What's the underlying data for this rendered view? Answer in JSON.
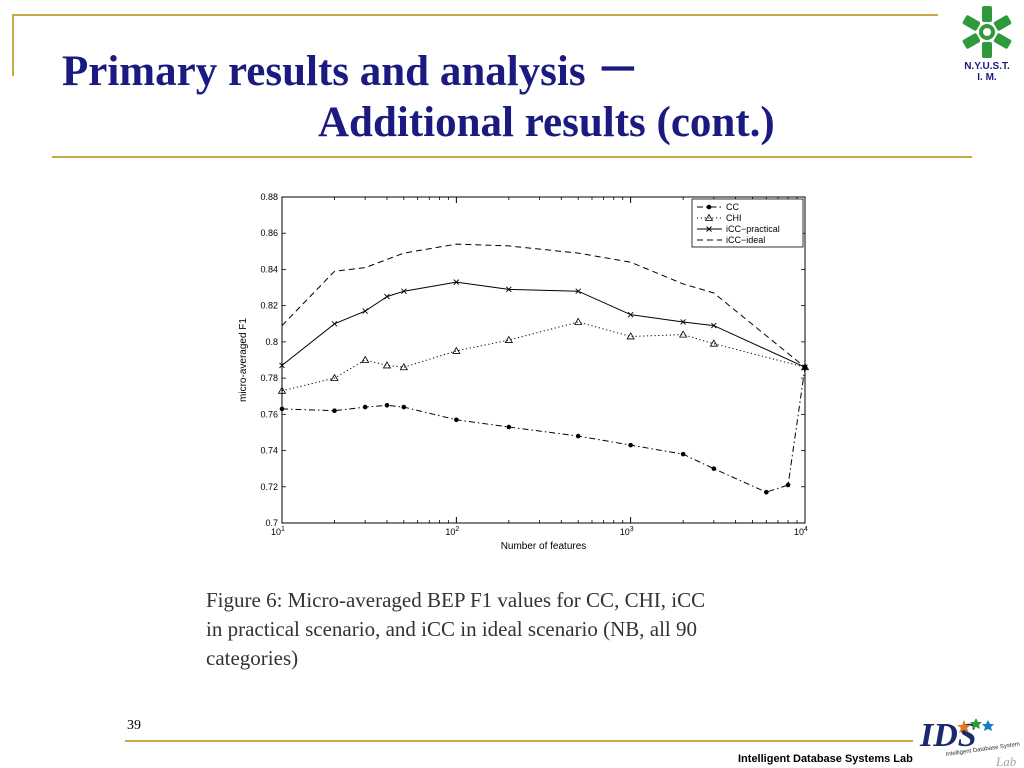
{
  "slide": {
    "title_line1": "Primary results and analysis  －",
    "title_line2": "Additional results (cont.)",
    "university": [
      "N.Y.U.S.T.",
      "I. M."
    ],
    "page_number": "39",
    "footer": "Intelligent Database Systems Lab",
    "lab_logo_text": "IDS",
    "lab_logo_script": "Lab",
    "lab_logo_subtitle": "Intelligent Database Systems",
    "caption_lines": [
      "Figure 6:  Micro-averaged BEP F1 values for CC, CHI, iCC",
      "in practical scenario, and iCC in ideal scenario (NB, all 90",
      "categories)"
    ],
    "colors": {
      "title": "#1a1a80",
      "rule": "#c8a84a",
      "logo_green": "#2e9a3c"
    }
  },
  "chart_data": {
    "type": "line",
    "xlabel": "Number of features",
    "ylabel": "micro-averaged F1",
    "xscale": "log",
    "xlim": [
      10,
      10000
    ],
    "ylim": [
      0.7,
      0.88
    ],
    "x_tick_labels": [
      {
        "value": 10,
        "base": "10",
        "exp": "1"
      },
      {
        "value": 100,
        "base": "10",
        "exp": "2"
      },
      {
        "value": 1000,
        "base": "10",
        "exp": "3"
      },
      {
        "value": 10000,
        "base": "10",
        "exp": "4"
      }
    ],
    "y_ticks": [
      "0.7",
      "0.72",
      "0.74",
      "0.76",
      "0.78",
      "0.8",
      "0.82",
      "0.84",
      "0.86",
      "0.88"
    ],
    "legend_position": "top-right",
    "series": [
      {
        "name": "CC",
        "style": "dashdot",
        "marker": "dot",
        "x": [
          10,
          20,
          30,
          40,
          50,
          100,
          200,
          500,
          1000,
          2000,
          3000,
          6000,
          8000,
          10000
        ],
        "y": [
          0.763,
          0.762,
          0.764,
          0.765,
          0.764,
          0.757,
          0.753,
          0.748,
          0.743,
          0.738,
          0.73,
          0.717,
          0.721,
          0.786
        ]
      },
      {
        "name": "CHI",
        "style": "dotted",
        "marker": "triangle",
        "x": [
          10,
          20,
          30,
          40,
          50,
          100,
          200,
          500,
          1000,
          2000,
          3000,
          10000
        ],
        "y": [
          0.773,
          0.78,
          0.79,
          0.787,
          0.786,
          0.795,
          0.801,
          0.811,
          0.803,
          0.804,
          0.799,
          0.786
        ]
      },
      {
        "name": "iCC−practical",
        "style": "solid",
        "marker": "x",
        "x": [
          10,
          20,
          30,
          40,
          50,
          100,
          200,
          500,
          1000,
          2000,
          3000,
          10000
        ],
        "y": [
          0.787,
          0.81,
          0.817,
          0.825,
          0.828,
          0.833,
          0.829,
          0.828,
          0.815,
          0.811,
          0.809,
          0.786
        ]
      },
      {
        "name": "iCC−ideal",
        "style": "dashed",
        "marker": "none",
        "x": [
          10,
          20,
          30,
          50,
          100,
          200,
          500,
          1000,
          2000,
          3000,
          10000
        ],
        "y": [
          0.809,
          0.839,
          0.841,
          0.849,
          0.854,
          0.853,
          0.849,
          0.844,
          0.832,
          0.827,
          0.786
        ]
      }
    ]
  }
}
